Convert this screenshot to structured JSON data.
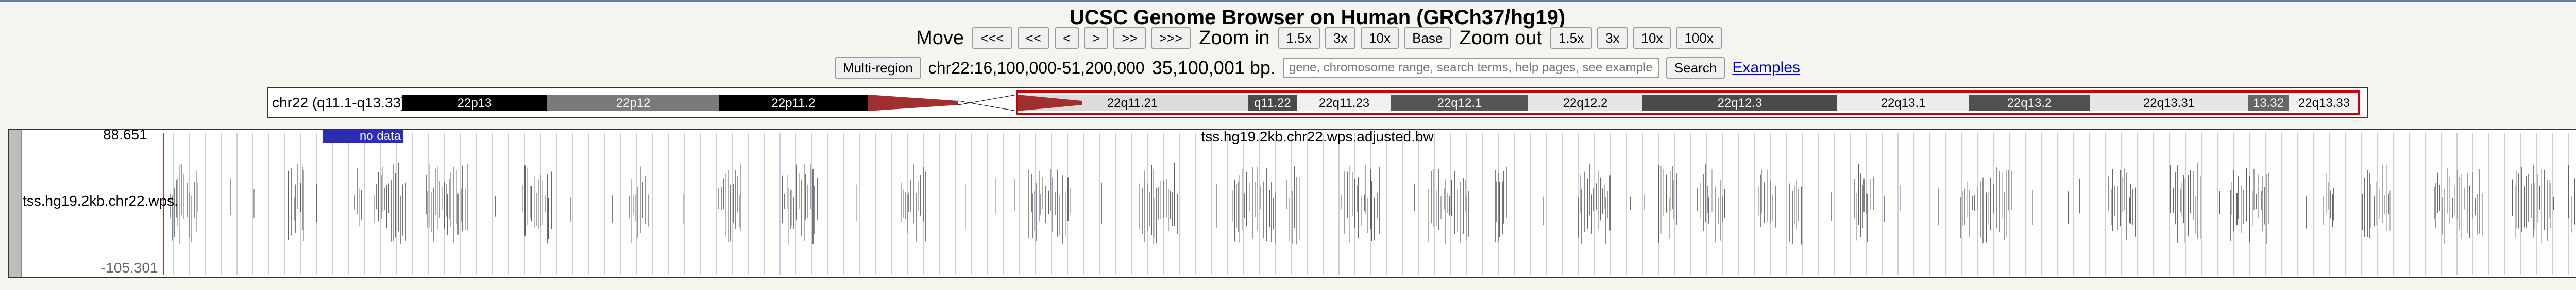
{
  "title": "UCSC Genome Browser on Human (GRCh37/hg19)",
  "nav": {
    "move_label": "Move",
    "move_buttons": [
      "<<<",
      "<<",
      "<",
      ">",
      ">>",
      ">>>"
    ],
    "zoom_in_label": "Zoom in",
    "zoom_in_buttons": [
      "1.5x",
      "3x",
      "10x",
      "Base"
    ],
    "zoom_out_label": "Zoom out",
    "zoom_out_buttons": [
      "1.5x",
      "3x",
      "10x",
      "100x"
    ]
  },
  "location": {
    "multi_region_label": "Multi-region",
    "position": "chr22:16,100,000-51,200,000",
    "size": "35,100,001 bp.",
    "search_placeholder": "gene, chromosome range, search terms, help pages, see examples",
    "search_label": "Search",
    "examples_label": "Examples"
  },
  "ideogram": {
    "label": "chr22 (q11.1-q13.33)",
    "bands": [
      {
        "name": "22p13",
        "color": "#000000",
        "text_color": "#ffffff"
      },
      {
        "name": "22p12",
        "color": "#7a7a7a",
        "text_color": "#ffffff"
      },
      {
        "name": "22p11.2",
        "color": "#000000",
        "text_color": "#ffffff"
      },
      {
        "name": "22q11.21",
        "color": "#dcdcdc",
        "text_color": "#000000"
      },
      {
        "name": "q11.22",
        "color": "#4a4a4a",
        "text_color": "#ffffff"
      },
      {
        "name": "22q11.23",
        "color": "#f0f0f0",
        "text_color": "#000000"
      },
      {
        "name": "22q12.1",
        "color": "#555555",
        "text_color": "#ffffff"
      },
      {
        "name": "22q12.2",
        "color": "#e6e6e6",
        "text_color": "#000000"
      },
      {
        "name": "22q12.3",
        "color": "#4a4a4a",
        "text_color": "#ffffff"
      },
      {
        "name": "22q13.1",
        "color": "#ececec",
        "text_color": "#000000"
      },
      {
        "name": "22q13.2",
        "color": "#505050",
        "text_color": "#ffffff"
      },
      {
        "name": "22q13.31",
        "color": "#e6e6e6",
        "text_color": "#000000"
      },
      {
        "name": "13.32",
        "color": "#666666",
        "text_color": "#ffffff"
      },
      {
        "name": "22q13.33",
        "color": "#f0f0f0",
        "text_color": "#000000"
      }
    ],
    "centromere_color": "#a03030",
    "highlight_color": "#cc0000"
  },
  "track": {
    "long_label": "tss.hg19.2kb.chr22.wps.adjusted.bw",
    "short_label": "tss.hg19.2kb.chr22.wps.",
    "axis_max": "88.651",
    "axis_min": "-105.301",
    "no_data_label": "no data",
    "no_data_color": "#2d2db4"
  }
}
